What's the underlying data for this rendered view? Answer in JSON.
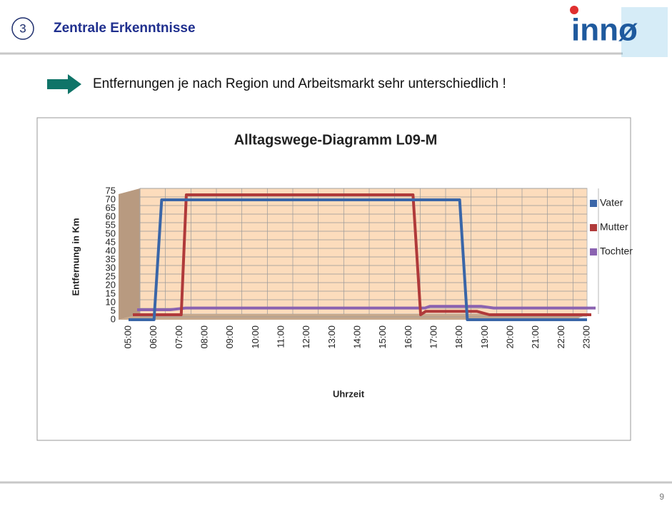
{
  "header": {
    "number": "3",
    "title": "Zentrale Erkenntnisse"
  },
  "logo": "innø",
  "bullet": "Entfernungen je nach Region und Arbeitsmarkt sehr unterschiedlich !",
  "page_number": "9",
  "chart_data": {
    "type": "line",
    "title": "Alltagswege-Diagramm L09-M",
    "x_label": "Uhrzeit",
    "y_label": "Entfernung in Km",
    "x": [
      5,
      6,
      6.3,
      6.9,
      7.1,
      16,
      16.3,
      16.5,
      18,
      18.3,
      18.5,
      19,
      23
    ],
    "series": [
      {
        "name": "Vater",
        "color": "#3a66a8",
        "values": [
          0,
          0,
          70,
          70,
          70,
          70,
          70,
          70,
          70,
          0,
          0,
          0,
          0
        ]
      },
      {
        "name": "Mutter",
        "color": "#b03a3a",
        "values": [
          0,
          0,
          0,
          0,
          70,
          70,
          0,
          2,
          2,
          2,
          2,
          0,
          0
        ]
      },
      {
        "name": "Tochter",
        "color": "#8a62b0",
        "values": [
          0,
          0,
          0,
          1,
          1,
          1,
          1,
          2,
          2,
          2,
          2,
          1,
          1
        ]
      }
    ],
    "xlim": [
      5,
      23
    ],
    "xticks": [
      {
        "value": 5,
        "label": "05:00"
      },
      {
        "value": 6,
        "label": "06:00"
      },
      {
        "value": 7,
        "label": "07:00"
      },
      {
        "value": 8,
        "label": "08:00"
      },
      {
        "value": 9,
        "label": "09:00"
      },
      {
        "value": 10,
        "label": "10:00"
      },
      {
        "value": 11,
        "label": "11:00"
      },
      {
        "value": 12,
        "label": "12:00"
      },
      {
        "value": 13,
        "label": "13:00"
      },
      {
        "value": 14,
        "label": "14:00"
      },
      {
        "value": 15,
        "label": "15:00"
      },
      {
        "value": 16,
        "label": "16:00"
      },
      {
        "value": 17,
        "label": "17:00"
      },
      {
        "value": 18,
        "label": "18:00"
      },
      {
        "value": 19,
        "label": "19:00"
      },
      {
        "value": 20,
        "label": "20:00"
      },
      {
        "value": 21,
        "label": "21:00"
      },
      {
        "value": 22,
        "label": "22:00"
      },
      {
        "value": 23,
        "label": "23:00"
      }
    ],
    "ylim": [
      0,
      75
    ],
    "yticks": [
      0,
      5,
      10,
      15,
      20,
      25,
      30,
      35,
      40,
      45,
      50,
      55,
      60,
      65,
      70,
      75
    ],
    "grid": true,
    "legend": "right"
  }
}
